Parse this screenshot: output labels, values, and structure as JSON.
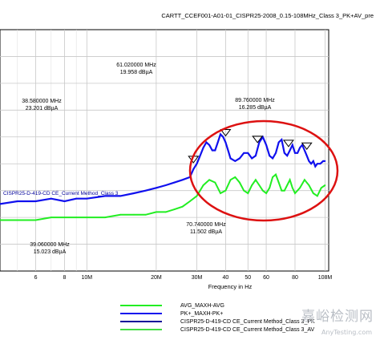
{
  "chart_data": {
    "type": "line",
    "title": "CARTT_CCEF001-A01-01_CISPR25-2008_0.15-108MHz_Class 3_PK+AV_pre",
    "xlabel": "Frequency in Hz",
    "ylabel": "",
    "x_scale": "log",
    "xlim": [
      4.2,
      112
    ],
    "ylim": [
      -10,
      80
    ],
    "grid": true,
    "x_tick_labels": [
      "6",
      "8",
      "10M",
      "20M",
      "30M",
      "40",
      "50",
      "60",
      "80",
      "108M"
    ],
    "x_ticks": [
      6,
      8,
      10,
      20,
      30,
      40,
      50,
      60,
      80,
      108
    ],
    "limit_line_label": "CISPR25-D-419-CD CE_Current Method_Class 3",
    "series": [
      {
        "name": "PK+_MAXH-PK+",
        "color": "#1010ee",
        "x": [
          4.2,
          5,
          6,
          7,
          8,
          9,
          10,
          12,
          14,
          16,
          18,
          20,
          22,
          24,
          26,
          28,
          29,
          30,
          31,
          32,
          33,
          34,
          35,
          36,
          37,
          38,
          39,
          40,
          41,
          42,
          44,
          46,
          48,
          50,
          52,
          54,
          56,
          58,
          60,
          62,
          64,
          66,
          68,
          70,
          72,
          74,
          76,
          78,
          80,
          82,
          84,
          86,
          88,
          90,
          92,
          94,
          96,
          98,
          100,
          103,
          106,
          108
        ],
        "y": [
          15,
          16,
          16,
          17,
          16,
          17,
          17,
          18,
          18,
          19,
          20,
          21,
          22,
          23,
          24,
          25,
          28,
          30,
          33,
          36,
          38,
          37,
          35,
          35,
          38,
          41,
          40,
          38,
          35,
          32,
          31,
          32,
          34,
          34,
          32,
          33,
          38,
          40,
          37,
          33,
          32,
          34,
          38,
          39,
          34,
          33,
          35,
          37,
          34,
          34,
          36,
          37,
          35,
          33,
          31,
          30,
          31,
          29,
          30,
          30,
          31,
          31
        ]
      },
      {
        "name": "AVG_MAXH-AVG",
        "color": "#22ee22",
        "x": [
          4.2,
          5,
          6,
          7,
          8,
          9,
          10,
          12,
          14,
          16,
          18,
          20,
          22,
          24,
          26,
          28,
          30,
          32,
          34,
          36,
          38,
          40,
          42,
          44,
          46,
          48,
          50,
          52,
          54,
          56,
          58,
          60,
          62,
          64,
          66,
          68,
          70,
          72,
          74,
          76,
          78,
          80,
          84,
          88,
          92,
          96,
          100,
          104,
          108
        ],
        "y": [
          9,
          9,
          9,
          10,
          10,
          10,
          10,
          10,
          11,
          11,
          11,
          12,
          12,
          13,
          14,
          16,
          18,
          22,
          24,
          23,
          19,
          20,
          24,
          25,
          23,
          20,
          19,
          22,
          24,
          22,
          20,
          19,
          21,
          25,
          26,
          23,
          20,
          20,
          22,
          24,
          21,
          19,
          21,
          24,
          22,
          19,
          18,
          21,
          22
        ]
      }
    ],
    "annotations": [
      {
        "x": 61.02,
        "text1": "61.020000 MHz",
        "text2": "19.958 dBµA"
      },
      {
        "x": 38.58,
        "text1": "38.580000 MHz",
        "text2": "23.201 dBµA"
      },
      {
        "x": 89.76,
        "text1": "89.760000 MHz",
        "text2": "16.285 dBµA"
      },
      {
        "x": 70.74,
        "text1": "70.740000 MHz",
        "text2": "11.502 dBµA"
      },
      {
        "x": 39.06,
        "text1": "39.060000 MHz",
        "text2": "15.023 dBµA"
      }
    ],
    "peak_markers_x": [
      29,
      40,
      55,
      75,
      90
    ],
    "highlight": {
      "shape": "ellipse",
      "color": "#dd1111"
    }
  },
  "legend": {
    "items": [
      {
        "label": "AVG_MAXH-AVG",
        "color": "#22ee22"
      },
      {
        "label": "PK+_MAXH-PK+",
        "color": "#1010ee"
      },
      {
        "label": "CISPR25-D-419-CD CE_Current Method_Class 3_PK",
        "color": "#0a0a99"
      },
      {
        "label": "CISPR25-D-419-CD CE_Current Method_Class 3_AV",
        "color": "#44dd44"
      }
    ]
  },
  "watermark": {
    "text": "嘉峪检测网",
    "url": "AnyTesting.com"
  }
}
